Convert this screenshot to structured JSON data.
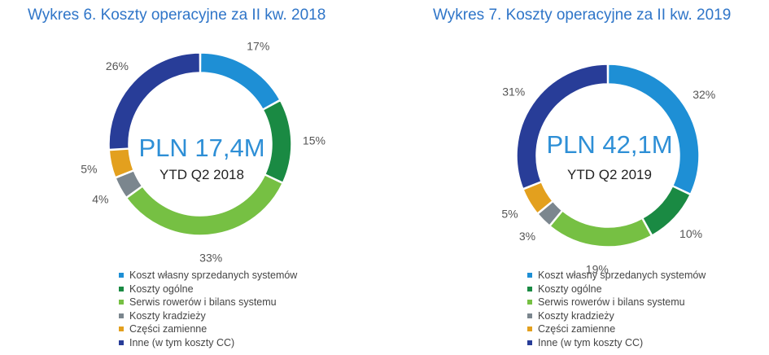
{
  "colors": [
    "#1e8fd5",
    "#1a8a43",
    "#76c043",
    "#7b868e",
    "#e3a01e",
    "#283d98"
  ],
  "chart_data": [
    {
      "type": "pie",
      "title": "Wykres 6. Koszty operacyjne za II kw. 2018",
      "center_value": "PLN 17,4M",
      "center_subtitle": "YTD Q2 2018",
      "categories": [
        "Koszt własny sprzedanych systemów",
        "Koszty ogólne",
        "Serwis rowerów i bilans systemu",
        "Koszty kradzieży",
        "Części zamienne",
        "Inne (w tym koszty CC)"
      ],
      "values": [
        17,
        15,
        33,
        4,
        5,
        26
      ],
      "labels": [
        "17%",
        "15%",
        "33%",
        "4%",
        "5%",
        "26%"
      ],
      "legend_position": "bottom"
    },
    {
      "type": "pie",
      "title": "Wykres 7. Koszty operacyjne za II kw. 2019",
      "center_value": "PLN 42,1M",
      "center_subtitle": "YTD Q2 2019",
      "categories": [
        "Koszt własny sprzedanych systemów",
        "Koszty ogólne",
        "Serwis rowerów i bilans systemu",
        "Koszty kradzieży",
        "Części zamienne",
        "Inne (w tym koszty CC)"
      ],
      "values": [
        32,
        10,
        19,
        3,
        5,
        31
      ],
      "labels": [
        "32%",
        "10%",
        "19%",
        "3%",
        "5%",
        "31%"
      ],
      "legend_position": "bottom"
    }
  ]
}
